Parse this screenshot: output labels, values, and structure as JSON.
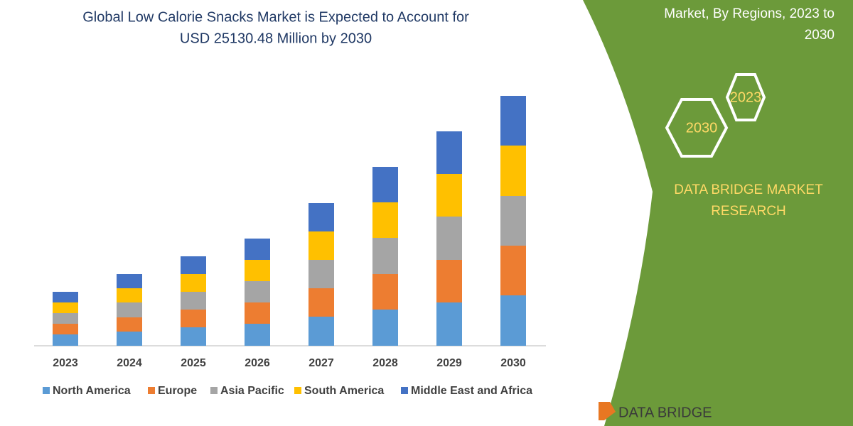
{
  "chart_data": {
    "type": "stacked_bar",
    "title_lines": [
      "Global Low Calorie Snacks Market is Expected to Account for",
      "USD 25130.48 Million by 2030"
    ],
    "categories": [
      "2023",
      "2024",
      "2025",
      "2026",
      "2027",
      "2028",
      "2029",
      "2030"
    ],
    "series": [
      {
        "name": "North America",
        "color": "#5b9bd5",
        "values": [
          16,
          20,
          26,
          31,
          41,
          51,
          61,
          71
        ]
      },
      {
        "name": "Europe",
        "color": "#ed7d31",
        "values": [
          15,
          20,
          25,
          30,
          40,
          50,
          60,
          70
        ]
      },
      {
        "name": "Asia Pacific",
        "color": "#a5a5a5",
        "values": [
          15,
          21,
          25,
          30,
          40,
          51,
          61,
          70
        ]
      },
      {
        "name": "South America",
        "color": "#ffc000",
        "values": [
          15,
          20,
          25,
          30,
          40,
          50,
          60,
          71
        ]
      },
      {
        "name": "Middle East and Africa",
        "color": "#4472c4",
        "values": [
          15,
          20,
          25,
          30,
          40,
          50,
          60,
          70
        ]
      }
    ],
    "ylim": [
      0,
      360
    ]
  },
  "side_panel": {
    "heading_lines": [
      "Market, By Regions, 2023 to",
      "2030"
    ],
    "hexagon_labels": [
      "2023",
      "2030"
    ],
    "brand_lines": [
      "DATA BRIDGE MARKET",
      "RESEARCH"
    ],
    "logo_text": "DATA BRIDGE"
  }
}
